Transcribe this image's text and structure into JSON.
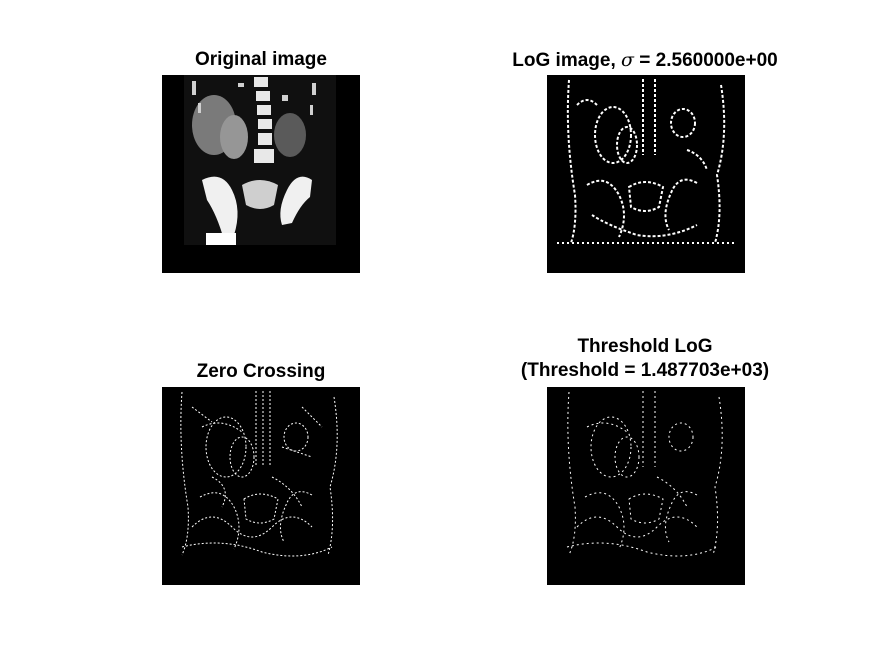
{
  "figure": {
    "background_color": "#ffffff",
    "panels": [
      {
        "id": "original",
        "title": "Original image",
        "kind": "grayscale-ct"
      },
      {
        "id": "log",
        "title_prefix": "LoG image, ",
        "title_symbol": "σ",
        "title_suffix": " = 2.560000e+00",
        "kind": "binary-edges"
      },
      {
        "id": "zero-crossing",
        "title": "Zero Crossing",
        "kind": "binary-edges"
      },
      {
        "id": "threshold",
        "title_line1": "Threshold LoG",
        "title_line2": "(Threshold = 1.487703e+03)",
        "kind": "binary-edges"
      }
    ],
    "colors": {
      "image_background": "#000000",
      "edge": "#ffffff",
      "tissue": "#8a8a8a"
    }
  }
}
